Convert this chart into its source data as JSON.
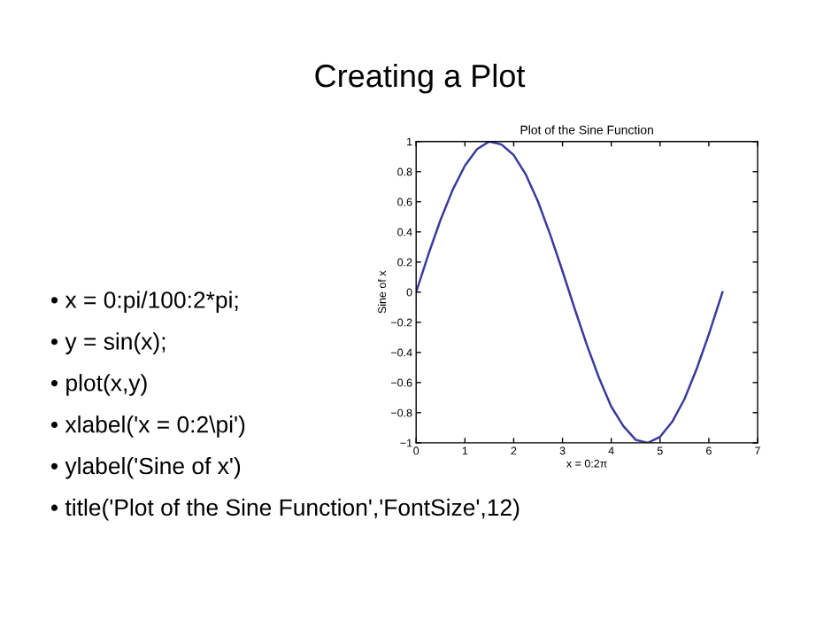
{
  "chart_data": {
    "type": "line",
    "title": "Plot of the Sine Function",
    "xlabel": "x = 0:2π",
    "ylabel": "Sine of x",
    "annotations": [
      "Creating a Plot",
      "• x = 0:pi/100:2*pi;",
      "• y = sin(x);",
      "• plot(x,y)",
      "• xlabel('x = 0:2\\pi')",
      "• ylabel('Sine of x')",
      "• title('Plot of the Sine Function','FontSize',12)"
    ],
    "x": [
      0,
      0.25,
      0.5,
      0.75,
      1,
      1.25,
      1.5,
      1.75,
      2,
      2.25,
      2.5,
      2.75,
      3,
      3.25,
      3.5,
      3.75,
      4,
      4.25,
      4.5,
      4.75,
      5,
      5.25,
      5.5,
      5.75,
      6,
      6.25,
      6.28
    ],
    "series": [
      {
        "color": "#3b3b9c",
        "values": [
          0,
          0.25,
          0.48,
          0.68,
          0.84,
          0.95,
          1.0,
          0.98,
          0.91,
          0.78,
          0.6,
          0.38,
          0.14,
          -0.11,
          -0.35,
          -0.57,
          -0.76,
          -0.89,
          -0.98,
          -1.0,
          -0.96,
          -0.86,
          -0.71,
          -0.51,
          -0.28,
          -0.03,
          0
        ]
      }
    ],
    "xlim": [
      0,
      7
    ],
    "ylim": [
      -1,
      1
    ],
    "xticks": [
      0,
      1,
      2,
      3,
      4,
      5,
      6,
      7
    ],
    "yticks": [
      {
        "value": -1,
        "label": "−1"
      },
      {
        "value": -0.8,
        "label": "−0.8"
      },
      {
        "value": -0.6,
        "label": "−0.6"
      },
      {
        "value": -0.4,
        "label": "−0.4"
      },
      {
        "value": -0.2,
        "label": "−0.2"
      },
      0,
      0.2,
      0.4,
      0.6,
      0.8,
      1
    ],
    "grid": false,
    "legend": false,
    "marker": "none",
    "line_style": "solid"
  }
}
